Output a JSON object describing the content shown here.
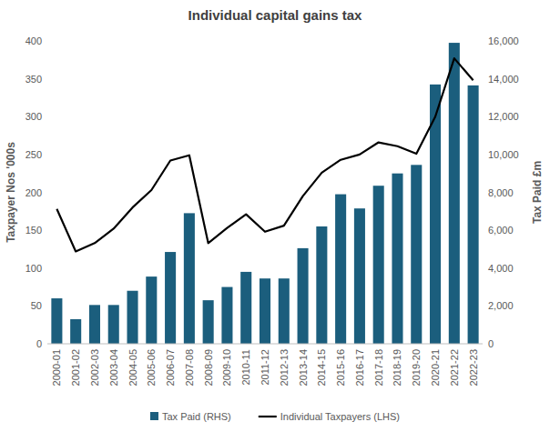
{
  "chart_data": {
    "type": "bar",
    "title": "Individual capital gains tax",
    "categories": [
      "2000-01",
      "2001-02",
      "2002-03",
      "2003-04",
      "2004-05",
      "2005-06",
      "2006-07",
      "2007-08",
      "2008-09",
      "2009-10",
      "2010-11",
      "2011-12",
      "2012-13",
      "2013-14",
      "2014-15",
      "2015-16",
      "2016-17",
      "2017-18",
      "2018-19",
      "2019-20",
      "2020-21",
      "2021-22",
      "2022-23"
    ],
    "series": [
      {
        "name": "Tax Paid (RHS)",
        "type": "bar",
        "axis": "y2",
        "color": "#1b5e7d",
        "values": [
          2400,
          1300,
          2050,
          2050,
          2800,
          3550,
          4850,
          6900,
          2300,
          3000,
          3800,
          3450,
          3450,
          5050,
          6200,
          7900,
          7150,
          8350,
          9000,
          9450,
          13700,
          15900,
          13650
        ]
      },
      {
        "name": "Individual Taxpayers (LHS)",
        "type": "line",
        "color": "#000000",
        "values": [
          178,
          122,
          133,
          152,
          180,
          203,
          242,
          249,
          133,
          153,
          171,
          148,
          156,
          195,
          226,
          243,
          250,
          266,
          261,
          251,
          300,
          377,
          348
        ]
      }
    ],
    "y_label": "Taxpayer Nos '000s",
    "y2_label": "Tax Paid £m",
    "ylim": [
      0,
      400
    ],
    "yticks": [
      0,
      50,
      100,
      150,
      200,
      250,
      300,
      350,
      400
    ],
    "y2lim": [
      0,
      16000
    ],
    "y2ticks": [
      0,
      {
        "value": 2000,
        "label": "2,000"
      },
      {
        "value": 4000,
        "label": "4,000"
      },
      {
        "value": 6000,
        "label": "6,000"
      },
      {
        "value": 8000,
        "label": "8,000"
      },
      {
        "value": 10000,
        "label": "10,000"
      },
      {
        "value": 12000,
        "label": "12,000"
      },
      {
        "value": 14000,
        "label": "14,000"
      },
      {
        "value": 16000,
        "label": "16,000"
      }
    ],
    "grid": false,
    "legend": "bottom"
  }
}
